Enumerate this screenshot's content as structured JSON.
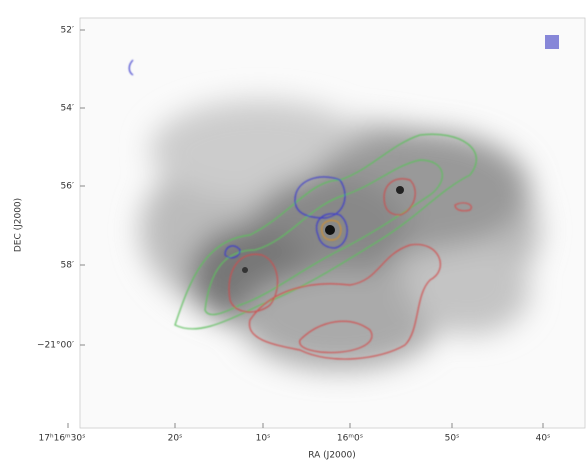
{
  "axes": {
    "xlabel": "RA (J2000)",
    "ylabel": "DEC (J2000)",
    "xticks": [
      "17ʰ16ᵐ30ˢ",
      "20ˢ",
      "10ˢ",
      "16ᵐ0ˢ",
      "50ˢ",
      "40ˢ"
    ],
    "yticks": [
      "52′",
      "54′",
      "56′",
      "58′",
      "−21°00′"
    ]
  }
}
